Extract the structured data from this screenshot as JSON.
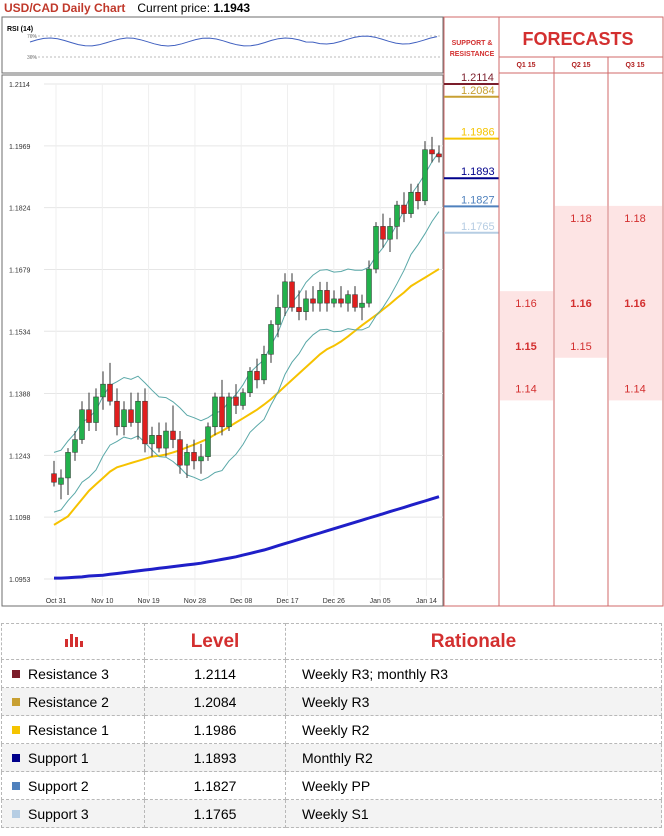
{
  "header": {
    "title": "USD/CAD Daily Chart",
    "price_label": "Current price:",
    "price_value": "1.1943"
  },
  "rsi": {
    "label": "RSI (14)",
    "levels": [
      "70%",
      "30%"
    ]
  },
  "sr_header": "SUPPORT & RESISTANCE",
  "forecast_header": "FORECASTS",
  "forecast_columns": [
    "Q1 15",
    "Q2 15",
    "Q3 15"
  ],
  "forecast_values": {
    "q1": [
      "1.16",
      "1.15",
      "1.14"
    ],
    "q2": [
      "1.18",
      "1.16",
      "1.15"
    ],
    "q3": [
      "1.18",
      "1.16",
      "1.14"
    ]
  },
  "colors": {
    "bull": "#22b14c",
    "bear": "#e01e1e",
    "ma_short": "#f6c200",
    "ma_long": "#1f1fc8",
    "bollinger": "#5aa8a8",
    "r3": "#7b1d2a",
    "r2": "#c8a032",
    "r1": "#f5c400",
    "s1": "#00008b",
    "s2": "#4f81bd",
    "s3": "#b6cde3",
    "title": "#c0392b"
  },
  "chart_data": {
    "type": "candlestick",
    "title": "USD/CAD Daily Chart",
    "y_ticks": [
      "1.2114",
      "1.1969",
      "1.1824",
      "1.1679",
      "1.1534",
      "1.1388",
      "1.1243",
      "1.1098",
      "1.0953"
    ],
    "ylim": [
      1.0953,
      1.2114
    ],
    "x_ticks": [
      "Oct 31",
      "Nov 10",
      "Nov 19",
      "Nov 28",
      "Dec 08",
      "Dec 17",
      "Dec 26",
      "Jan 05",
      "Jan 14"
    ],
    "grid": true,
    "candles": [
      {
        "o": 1.12,
        "h": 1.123,
        "l": 1.117,
        "c": 1.118
      },
      {
        "o": 1.1175,
        "h": 1.121,
        "l": 1.114,
        "c": 1.119
      },
      {
        "o": 1.119,
        "h": 1.126,
        "l": 1.115,
        "c": 1.125
      },
      {
        "o": 1.125,
        "h": 1.13,
        "l": 1.123,
        "c": 1.128
      },
      {
        "o": 1.128,
        "h": 1.137,
        "l": 1.127,
        "c": 1.135
      },
      {
        "o": 1.135,
        "h": 1.139,
        "l": 1.13,
        "c": 1.132
      },
      {
        "o": 1.132,
        "h": 1.14,
        "l": 1.13,
        "c": 1.138
      },
      {
        "o": 1.138,
        "h": 1.144,
        "l": 1.135,
        "c": 1.141
      },
      {
        "o": 1.141,
        "h": 1.146,
        "l": 1.136,
        "c": 1.137
      },
      {
        "o": 1.137,
        "h": 1.14,
        "l": 1.129,
        "c": 1.131
      },
      {
        "o": 1.131,
        "h": 1.137,
        "l": 1.129,
        "c": 1.135
      },
      {
        "o": 1.135,
        "h": 1.139,
        "l": 1.131,
        "c": 1.132
      },
      {
        "o": 1.132,
        "h": 1.139,
        "l": 1.128,
        "c": 1.137
      },
      {
        "o": 1.137,
        "h": 1.14,
        "l": 1.125,
        "c": 1.127
      },
      {
        "o": 1.127,
        "h": 1.131,
        "l": 1.124,
        "c": 1.129
      },
      {
        "o": 1.129,
        "h": 1.132,
        "l": 1.125,
        "c": 1.126
      },
      {
        "o": 1.126,
        "h": 1.132,
        "l": 1.124,
        "c": 1.13
      },
      {
        "o": 1.13,
        "h": 1.136,
        "l": 1.126,
        "c": 1.128
      },
      {
        "o": 1.128,
        "h": 1.13,
        "l": 1.12,
        "c": 1.122
      },
      {
        "o": 1.122,
        "h": 1.127,
        "l": 1.119,
        "c": 1.125
      },
      {
        "o": 1.125,
        "h": 1.128,
        "l": 1.121,
        "c": 1.123
      },
      {
        "o": 1.123,
        "h": 1.127,
        "l": 1.12,
        "c": 1.124
      },
      {
        "o": 1.124,
        "h": 1.132,
        "l": 1.123,
        "c": 1.131
      },
      {
        "o": 1.131,
        "h": 1.139,
        "l": 1.129,
        "c": 1.138
      },
      {
        "o": 1.138,
        "h": 1.142,
        "l": 1.129,
        "c": 1.131
      },
      {
        "o": 1.131,
        "h": 1.139,
        "l": 1.13,
        "c": 1.138
      },
      {
        "o": 1.138,
        "h": 1.141,
        "l": 1.134,
        "c": 1.136
      },
      {
        "o": 1.136,
        "h": 1.14,
        "l": 1.135,
        "c": 1.139
      },
      {
        "o": 1.139,
        "h": 1.145,
        "l": 1.138,
        "c": 1.144
      },
      {
        "o": 1.144,
        "h": 1.147,
        "l": 1.14,
        "c": 1.142
      },
      {
        "o": 1.142,
        "h": 1.15,
        "l": 1.141,
        "c": 1.148
      },
      {
        "o": 1.148,
        "h": 1.156,
        "l": 1.146,
        "c": 1.155
      },
      {
        "o": 1.155,
        "h": 1.162,
        "l": 1.152,
        "c": 1.159
      },
      {
        "o": 1.159,
        "h": 1.167,
        "l": 1.157,
        "c": 1.165
      },
      {
        "o": 1.165,
        "h": 1.167,
        "l": 1.158,
        "c": 1.159
      },
      {
        "o": 1.159,
        "h": 1.163,
        "l": 1.156,
        "c": 1.158
      },
      {
        "o": 1.158,
        "h": 1.163,
        "l": 1.156,
        "c": 1.161
      },
      {
        "o": 1.161,
        "h": 1.164,
        "l": 1.158,
        "c": 1.16
      },
      {
        "o": 1.16,
        "h": 1.165,
        "l": 1.158,
        "c": 1.163
      },
      {
        "o": 1.163,
        "h": 1.165,
        "l": 1.158,
        "c": 1.16
      },
      {
        "o": 1.16,
        "h": 1.163,
        "l": 1.159,
        "c": 1.161
      },
      {
        "o": 1.161,
        "h": 1.164,
        "l": 1.159,
        "c": 1.16
      },
      {
        "o": 1.16,
        "h": 1.163,
        "l": 1.158,
        "c": 1.162
      },
      {
        "o": 1.162,
        "h": 1.164,
        "l": 1.158,
        "c": 1.159
      },
      {
        "o": 1.159,
        "h": 1.162,
        "l": 1.156,
        "c": 1.16
      },
      {
        "o": 1.16,
        "h": 1.17,
        "l": 1.159,
        "c": 1.168
      },
      {
        "o": 1.168,
        "h": 1.179,
        "l": 1.167,
        "c": 1.178
      },
      {
        "o": 1.178,
        "h": 1.181,
        "l": 1.173,
        "c": 1.175
      },
      {
        "o": 1.175,
        "h": 1.18,
        "l": 1.172,
        "c": 1.178
      },
      {
        "o": 1.178,
        "h": 1.184,
        "l": 1.175,
        "c": 1.183
      },
      {
        "o": 1.183,
        "h": 1.186,
        "l": 1.179,
        "c": 1.181
      },
      {
        "o": 1.181,
        "h": 1.188,
        "l": 1.18,
        "c": 1.186
      },
      {
        "o": 1.186,
        "h": 1.188,
        "l": 1.182,
        "c": 1.184
      },
      {
        "o": 1.184,
        "h": 1.198,
        "l": 1.183,
        "c": 1.196
      },
      {
        "o": 1.196,
        "h": 1.199,
        "l": 1.193,
        "c": 1.195
      },
      {
        "o": 1.195,
        "h": 1.197,
        "l": 1.193,
        "c": 1.1943
      }
    ],
    "series": [
      {
        "name": "",
        "values": [
          1.108,
          1.109,
          1.11,
          1.112,
          1.114,
          1.116,
          1.1175,
          1.119,
          1.1205,
          1.1215,
          1.122,
          1.1225,
          1.123,
          1.1235,
          1.124,
          1.1242,
          1.1245,
          1.125,
          1.1255,
          1.1262,
          1.1268,
          1.1275,
          1.1282,
          1.1292,
          1.13,
          1.131,
          1.132,
          1.133,
          1.134,
          1.135,
          1.1362,
          1.1375,
          1.139,
          1.1405,
          1.142,
          1.1435,
          1.145,
          1.1465,
          1.148,
          1.1492,
          1.15,
          1.151,
          1.1522,
          1.1535,
          1.1548,
          1.156,
          1.1572,
          1.1585,
          1.1598,
          1.1612,
          1.1625,
          1.164,
          1.165,
          1.166,
          1.167,
          1.168
        ]
      },
      {
        "name": "",
        "values": [
          1.0955,
          1.0955,
          1.0956,
          1.0957,
          1.0958,
          1.096,
          1.0961,
          1.0962,
          1.0964,
          1.0966,
          1.0968,
          1.097,
          1.0972,
          1.0974,
          1.0976,
          1.0978,
          1.098,
          1.0982,
          1.0984,
          1.0986,
          1.0988,
          1.099,
          1.0993,
          1.0996,
          1.0999,
          1.1002,
          1.1005,
          1.1009,
          1.1013,
          1.1017,
          1.1021,
          1.1026,
          1.1031,
          1.1036,
          1.1041,
          1.1046,
          1.1051,
          1.1056,
          1.1061,
          1.1066,
          1.1071,
          1.1076,
          1.1081,
          1.1086,
          1.1091,
          1.1096,
          1.1101,
          1.1106,
          1.1111,
          1.1116,
          1.1121,
          1.1126,
          1.1131,
          1.1136,
          1.1141,
          1.1146
        ]
      }
    ],
    "support_resistance": [
      "1.2114",
      "1.2084",
      "1.1986",
      "1.1893",
      "1.1827",
      "1.1765"
    ]
  },
  "table": {
    "headers": [
      "Level",
      "Rationale"
    ],
    "rows": [
      {
        "name": "Resistance 3",
        "level": "1.2114",
        "rationale": "Weekly R3; monthly R3"
      },
      {
        "name": "Resistance 2",
        "level": "1.2084",
        "rationale": "Weekly R3"
      },
      {
        "name": "Resistance 1",
        "level": "1.1986",
        "rationale": "Weekly R2"
      },
      {
        "name": "Support 1",
        "level": "1.1893",
        "rationale": "Monthly R2"
      },
      {
        "name": "Support 2",
        "level": "1.1827",
        "rationale": "Weekly PP"
      },
      {
        "name": "Support 3",
        "level": "1.1765",
        "rationale": "Weekly S1"
      }
    ]
  }
}
